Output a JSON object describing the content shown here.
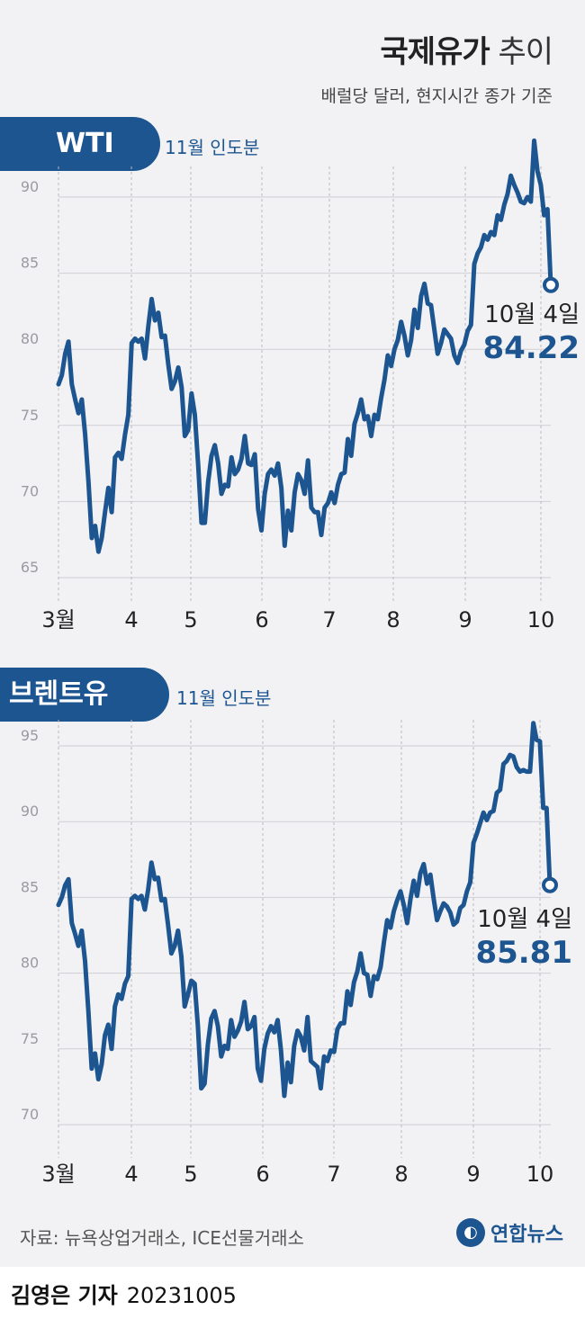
{
  "title_strong": "국제유가",
  "title_light": "추이",
  "subtitle": "배럴당 달러, 현지시간 종가 기준",
  "source": "자료: 뉴욕상업거래소, ICE선물거래소",
  "logo_text": "연합뉴스",
  "byline_name": "김영은 기자",
  "byline_date": "20231005",
  "colors": {
    "line": "#1d5591",
    "tab": "#1d5591",
    "grid": "#cfcfd4",
    "panel": "#f2f2f4"
  },
  "chart_data": [
    {
      "type": "line",
      "title": "WTI",
      "subtitle": "11월 인도분",
      "month_labels": [
        "3월",
        "4",
        "5",
        "6",
        "7",
        "8",
        "9",
        "10"
      ],
      "ylim": [
        65,
        92
      ],
      "yticks": [
        65,
        70,
        75,
        80,
        85,
        90
      ],
      "grid": true,
      "annotation_date": "10월 4일",
      "annotation_value": "84.22",
      "series": [
        {
          "values": [
            77.7,
            78.3,
            79.7,
            80.5,
            77.7,
            76.7,
            75.8,
            76.7,
            74.4,
            71.3,
            67.6,
            68.4,
            66.7,
            67.6,
            69.3,
            70.9,
            69.3,
            72.9,
            73.2,
            72.8,
            74.4,
            75.7,
            80.4,
            80.7,
            80.5,
            80.7,
            79.4,
            81.5,
            83.3,
            81.9,
            82.4,
            80.8,
            80.9,
            79.0,
            77.4,
            77.9,
            78.8,
            77.5,
            74.3,
            74.7,
            77.1,
            75.7,
            72.4,
            68.6,
            68.6,
            71.3,
            73.0,
            73.7,
            72.5,
            70.5,
            71.1,
            71.0,
            72.9,
            71.8,
            72.1,
            72.8,
            74.3,
            72.5,
            72.4,
            73.1,
            69.5,
            68.1,
            70.5,
            71.8,
            72.1,
            71.7,
            72.5,
            70.9,
            67.1,
            69.4,
            68.1,
            70.6,
            71.8,
            71.4,
            70.5,
            72.7,
            69.6,
            69.3,
            69.3,
            67.8,
            69.6,
            69.9,
            70.6,
            69.9,
            71.1,
            71.8,
            71.9,
            74.1,
            73.0,
            75.1,
            75.8,
            76.7,
            75.4,
            75.6,
            74.3,
            75.7,
            75.4,
            76.8,
            78.0,
            79.6,
            78.9,
            80.0,
            80.6,
            81.8,
            80.9,
            79.6,
            80.6,
            82.6,
            81.4,
            83.5,
            84.3,
            83.0,
            82.9,
            81.3,
            79.7,
            80.4,
            81.3,
            81.0,
            80.7,
            79.6,
            79.1,
            79.9,
            80.3,
            81.2,
            81.6,
            85.6,
            86.3,
            86.7,
            87.5,
            87.2,
            87.7,
            87.5,
            88.8,
            88.5,
            89.5,
            90.2,
            91.4,
            90.8,
            90.3,
            89.7,
            89.6,
            90.0,
            89.7,
            93.7,
            91.7,
            90.8,
            88.8,
            89.2,
            84.22
          ]
        }
      ]
    },
    {
      "type": "line",
      "title": "브렌트유",
      "subtitle": "11월 인도분",
      "month_labels": [
        "3월",
        "4",
        "5",
        "6",
        "7",
        "8",
        "9",
        "10"
      ],
      "ylim": [
        70,
        97
      ],
      "yticks": [
        70,
        75,
        80,
        85,
        90,
        95
      ],
      "grid": true,
      "annotation_date": "10월 4일",
      "annotation_value": "85.81",
      "series": [
        {
          "values": [
            84.5,
            85.0,
            85.8,
            86.2,
            83.3,
            82.6,
            81.8,
            82.8,
            80.8,
            77.5,
            73.7,
            74.7,
            73.0,
            74.0,
            75.9,
            76.6,
            75.0,
            77.8,
            78.6,
            78.3,
            79.3,
            79.8,
            84.9,
            85.1,
            84.9,
            85.1,
            84.2,
            85.5,
            87.3,
            86.2,
            86.3,
            84.8,
            84.9,
            83.2,
            81.3,
            81.8,
            82.8,
            81.1,
            77.8,
            78.6,
            79.5,
            79.3,
            76.5,
            72.4,
            72.7,
            75.3,
            77.0,
            77.5,
            76.5,
            74.5,
            75.2,
            75.0,
            76.9,
            75.8,
            76.2,
            76.8,
            78.1,
            76.3,
            76.5,
            77.1,
            73.7,
            72.9,
            75.0,
            76.0,
            76.5,
            76.1,
            76.9,
            74.9,
            71.9,
            74.1,
            72.8,
            75.2,
            76.2,
            75.8,
            74.9,
            77.1,
            74.2,
            74.0,
            73.8,
            72.4,
            74.5,
            74.2,
            74.9,
            74.8,
            76.3,
            76.7,
            76.7,
            78.8,
            77.9,
            79.4,
            80.1,
            81.3,
            80.0,
            79.9,
            78.5,
            79.8,
            79.6,
            80.4,
            82.0,
            83.5,
            83.0,
            84.1,
            84.8,
            85.4,
            84.5,
            83.3,
            84.9,
            86.1,
            85.1,
            86.6,
            87.2,
            85.9,
            86.5,
            84.9,
            83.5,
            84.1,
            84.6,
            84.4,
            84.0,
            83.2,
            83.4,
            84.3,
            84.5,
            85.4,
            86.0,
            88.6,
            89.2,
            89.9,
            90.6,
            90.1,
            90.6,
            90.7,
            91.9,
            92.1,
            93.8,
            94.0,
            94.4,
            94.3,
            93.6,
            93.3,
            93.4,
            93.3,
            93.3,
            96.5,
            95.4,
            95.3,
            90.9,
            90.9,
            85.81
          ]
        }
      ]
    }
  ]
}
